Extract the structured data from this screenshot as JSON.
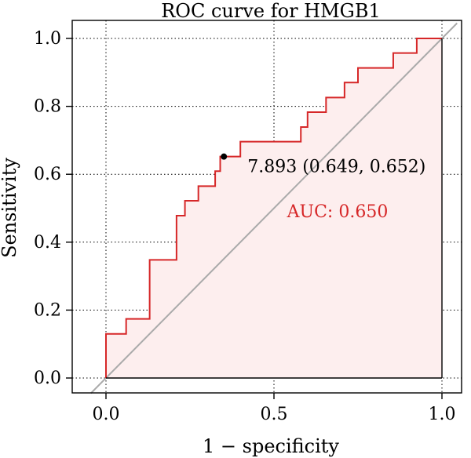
{
  "chart_data": {
    "type": "line",
    "title": "ROC curve for HMGB1",
    "xlabel": "1 − specificity",
    "ylabel": "Sensitivity",
    "xlim": [
      0,
      1
    ],
    "ylim": [
      0,
      1
    ],
    "x_ticks": [
      {
        "value": 0.0,
        "label": "0.0"
      },
      {
        "value": 0.5,
        "label": "0.5"
      },
      {
        "value": 1.0,
        "label": "1.0"
      }
    ],
    "y_ticks": [
      {
        "value": 0.0,
        "label": "0.0"
      },
      {
        "value": 0.2,
        "label": "0.2"
      },
      {
        "value": 0.4,
        "label": "0.4"
      },
      {
        "value": 0.6,
        "label": "0.6"
      },
      {
        "value": 0.8,
        "label": "0.8"
      },
      {
        "value": 1.0,
        "label": "1.0"
      }
    ],
    "grid": true,
    "series": [
      {
        "color": "#d62728",
        "fill": "#fdeeee",
        "points": [
          [
            0.0,
            0.0
          ],
          [
            0.0,
            0.13
          ],
          [
            0.06,
            0.13
          ],
          [
            0.06,
            0.174
          ],
          [
            0.13,
            0.174
          ],
          [
            0.13,
            0.348
          ],
          [
            0.21,
            0.348
          ],
          [
            0.21,
            0.478
          ],
          [
            0.235,
            0.478
          ],
          [
            0.235,
            0.522
          ],
          [
            0.275,
            0.522
          ],
          [
            0.275,
            0.565
          ],
          [
            0.325,
            0.565
          ],
          [
            0.325,
            0.609
          ],
          [
            0.34,
            0.609
          ],
          [
            0.34,
            0.652
          ],
          [
            0.4,
            0.652
          ],
          [
            0.4,
            0.696
          ],
          [
            0.58,
            0.696
          ],
          [
            0.58,
            0.739
          ],
          [
            0.6,
            0.739
          ],
          [
            0.6,
            0.783
          ],
          [
            0.655,
            0.783
          ],
          [
            0.655,
            0.826
          ],
          [
            0.71,
            0.826
          ],
          [
            0.71,
            0.87
          ],
          [
            0.75,
            0.87
          ],
          [
            0.75,
            0.913
          ],
          [
            0.855,
            0.913
          ],
          [
            0.855,
            0.957
          ],
          [
            0.925,
            0.957
          ],
          [
            0.925,
            1.0
          ],
          [
            1.0,
            1.0
          ]
        ]
      }
    ],
    "reference_line": {
      "from": [
        0,
        0
      ],
      "to": [
        1,
        1
      ],
      "color": "#aaaaaa"
    },
    "cutoff_point": {
      "x": 0.351,
      "y": 0.652,
      "label": "7.893 (0.649, 0.652)"
    },
    "auc_text": "AUC: 0.650",
    "auc_color": "#d62728"
  }
}
